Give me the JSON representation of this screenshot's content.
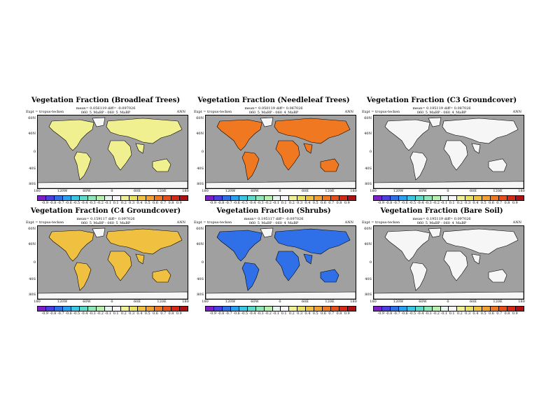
{
  "lat_labels": [
    "60N",
    "40N",
    "0",
    "40S",
    "80S"
  ],
  "lon_labels": [
    "180",
    "120W",
    "60W",
    "0",
    "60E",
    "120E",
    "180"
  ],
  "colorbar_labels": [
    "-0.9",
    "-0.8",
    "-0.7",
    "-0.6",
    "-0.5",
    "-0.4",
    "-0.3",
    "-0.2",
    "-0.1",
    "0.1",
    "0.2",
    "0.3",
    "0.4",
    "0.5",
    "0.6",
    "0.7",
    "0.8",
    "0.9"
  ],
  "colorbar_colors": [
    "#7e1fc8",
    "#4a3fe0",
    "#2f6fe8",
    "#2aa0f0",
    "#3cc6e6",
    "#5fd9c8",
    "#8fe6b8",
    "#b9eeb0",
    "#e6f4ee",
    "#f6f6f6",
    "#f0f090",
    "#e8e060",
    "#f0c040",
    "#f4a030",
    "#f07820",
    "#e85018",
    "#d82818",
    "#b01010"
  ],
  "panels": [
    {
      "title": "Vegetation Fraction (Broadleaf Trees)",
      "stats": "mean= 0.056119 diff= -0.097026",
      "expt": "Expt = tropus-tecken",
      "case": "060_5_MaBP - 060_5_MaBP",
      "season": "ANN",
      "fill": "#f0f090"
    },
    {
      "title": "Vegetation Fraction (Needleleaf Trees)",
      "stats": "mean= 0.050119 diff= 0.067026",
      "expt": "Expt = tropus-tecken",
      "case": "060_5_MaBP - 060_4_MaBP",
      "season": "ANN",
      "fill": "#f07820"
    },
    {
      "title": "Vegetation Fraction (C3 Groundcover)",
      "stats": "mean= 0.195119 diff= 0.087026",
      "expt": "Expt = tropus-tecken",
      "case": "060_5_MaBP - 060_4_MaBP",
      "season": "ANN",
      "fill": "#f6f6f6"
    },
    {
      "title": "Vegetation Fraction (C4 Groundcover)",
      "stats": "mean= 0.159117 diff= 0.097026",
      "expt": "Expt = tropus-tecken",
      "case": "060_5_MaBP - 060_5_MaBP",
      "season": "ANN",
      "fill": "#f0c040"
    },
    {
      "title": "Vegetation Fraction (Shrubs)",
      "stats": "mean= 0.195117 diff= -0.097026",
      "expt": "Expt = tropus-tecken",
      "case": "060_5_MaBP - 060_4_MaBP",
      "season": "ANN",
      "fill": "#2f6fe8"
    },
    {
      "title": "Vegetation Fraction (Bare Soil)",
      "stats": "mean= 0.195119 diff= 0.097026",
      "expt": "Expt = tropus-tecken",
      "case": "060_5_MaBP - 060_4_MaBP",
      "season": "ANN",
      "fill": "#f6f6f6"
    }
  ]
}
